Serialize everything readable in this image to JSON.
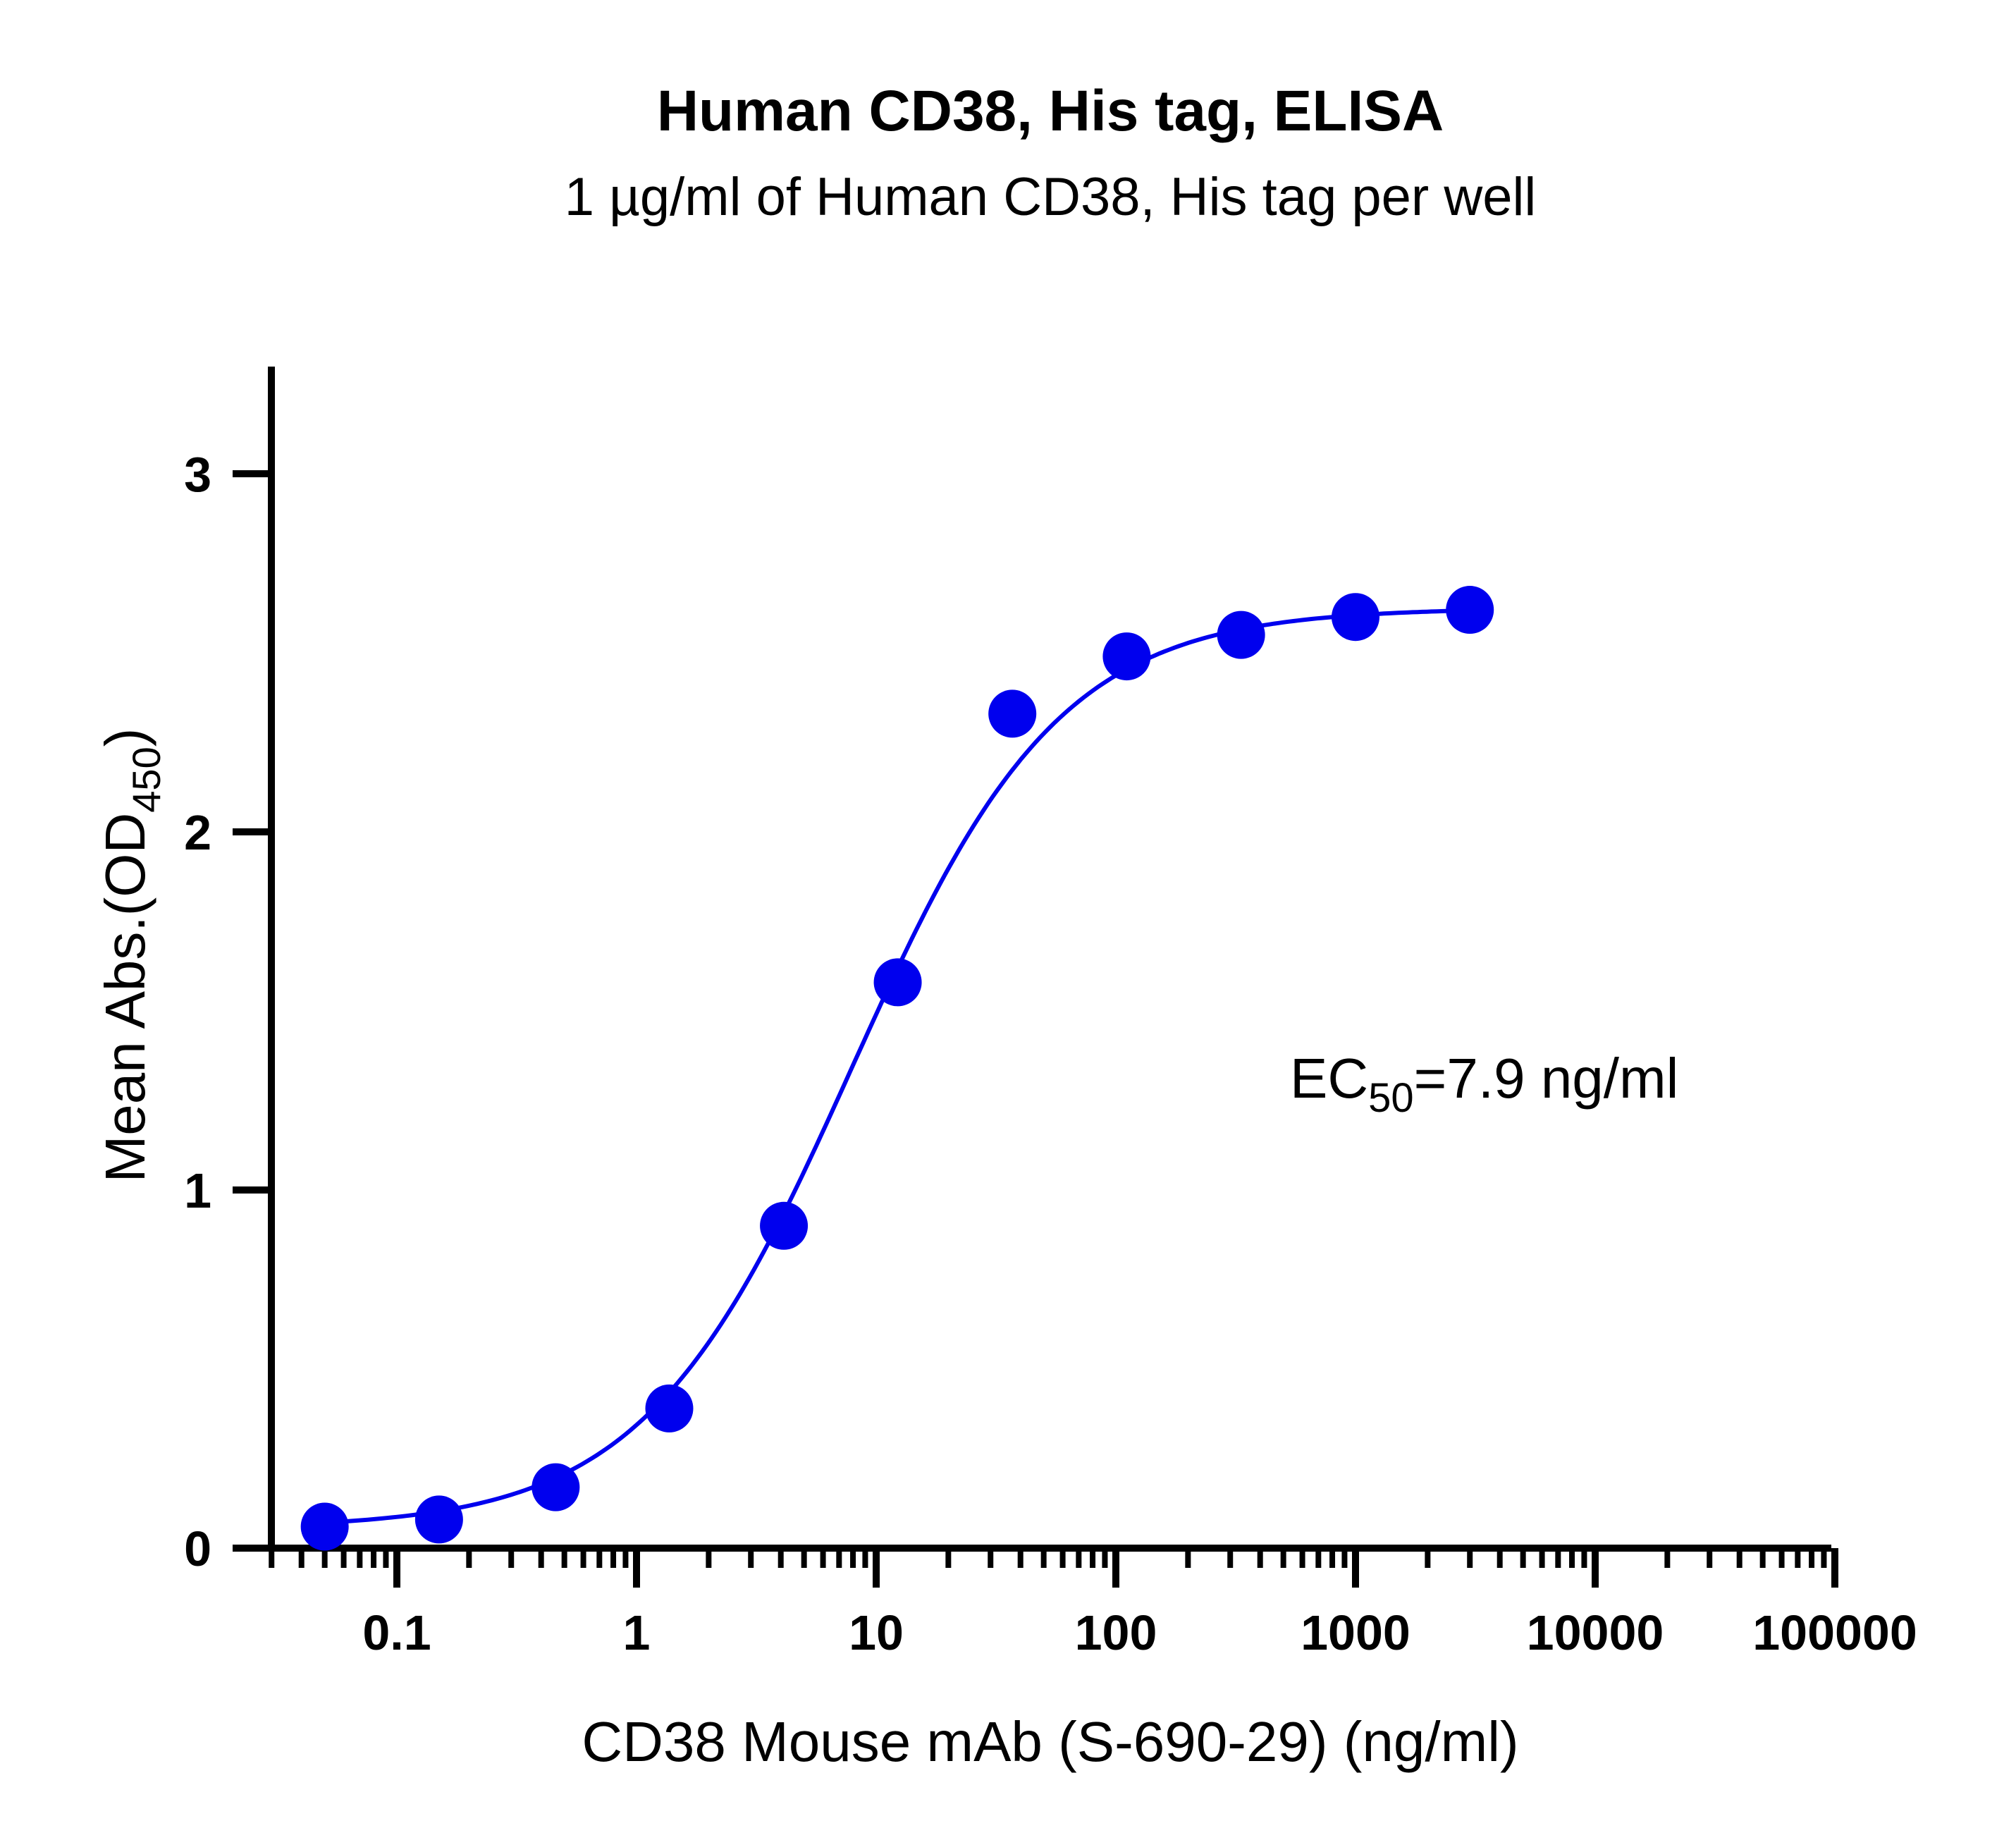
{
  "chart_data": {
    "type": "scatter",
    "title": "Human CD38, His tag, ELISA",
    "subtitle": "1 µg/ml of Human CD38, His tag per well",
    "xlabel": "CD38 Mouse mAb (S-690-29) (ng/ml)",
    "ylabel_main": "Mean Abs.(OD",
    "ylabel_sub": "450",
    "ylabel_end": ")",
    "x_scale": "log",
    "xlim": [
      0.03,
      100000
    ],
    "ylim": [
      0,
      3.3
    ],
    "x_ticks": [
      0.1,
      1,
      10,
      100,
      1000,
      10000,
      100000
    ],
    "x_tick_labels": [
      "0.1",
      "1",
      "10",
      "100",
      "1000",
      "10000",
      "100000"
    ],
    "y_ticks": [
      0,
      1,
      2,
      3
    ],
    "y_tick_labels": [
      "0",
      "1",
      "2",
      "3"
    ],
    "grid": false,
    "series": [
      {
        "color": "#0000ee",
        "x": [
          0.05,
          0.15,
          0.46,
          1.37,
          4.12,
          12.3,
          37.0,
          111,
          333,
          1000,
          3000
        ],
        "y": [
          0.06,
          0.08,
          0.17,
          0.39,
          0.9,
          1.58,
          2.33,
          2.49,
          2.55,
          2.6,
          2.62
        ],
        "fit": {
          "model": "4PL",
          "bottom": 0.055,
          "top": 2.625,
          "ec50": 7.9,
          "hill": 1.0
        }
      }
    ],
    "annotation": {
      "prefix": "EC",
      "sub": "50",
      "suffix": "=7.9 ng/ml"
    }
  }
}
